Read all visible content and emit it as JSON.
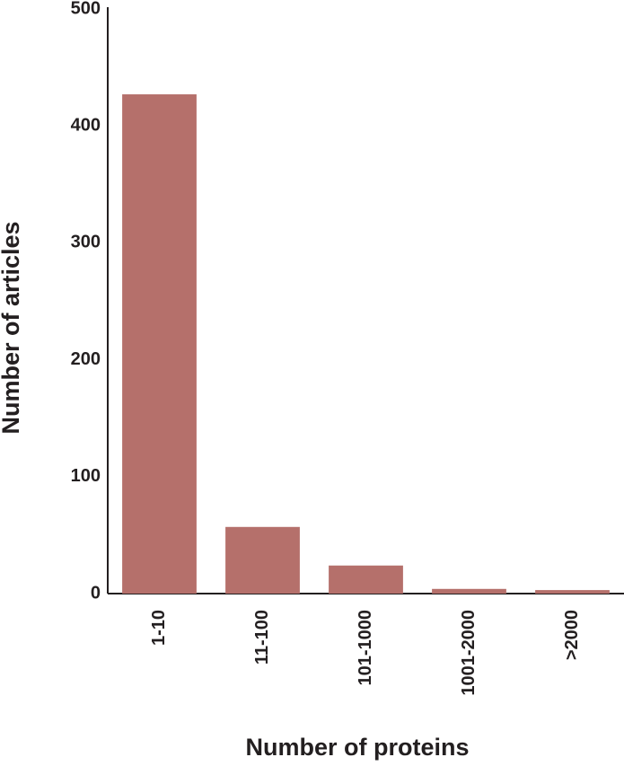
{
  "chart_data": {
    "type": "bar",
    "categories": [
      "1-10",
      "11-100",
      "101-1000",
      "1001-2000",
      ">2000"
    ],
    "values": [
      427,
      57,
      24,
      4,
      3
    ],
    "color": "#b5706b",
    "x_label": "Number of proteins",
    "y_label": "Number of articles",
    "ylim": [
      0,
      500
    ],
    "yticks": [
      0,
      100,
      200,
      300,
      400,
      500
    ],
    "grid": false
  }
}
